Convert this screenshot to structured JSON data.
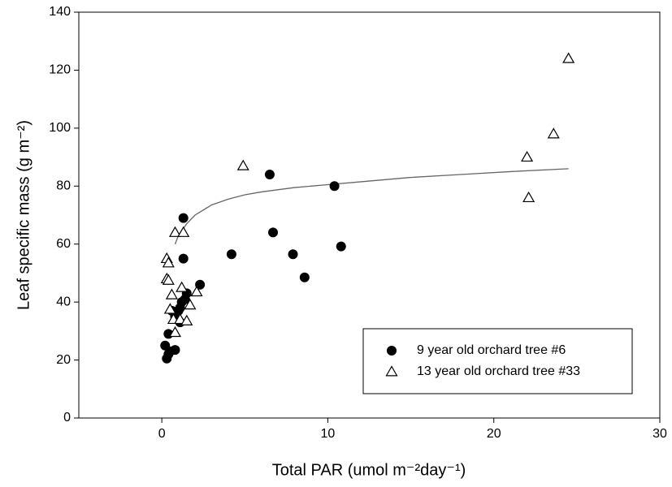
{
  "chart_data": {
    "type": "scatter",
    "x_label": "Total PAR (umol m⁻²day⁻¹)",
    "y_label": "Leaf specific mass (g m⁻²)",
    "xlim": [
      -5,
      30
    ],
    "xticks": [
      0,
      10,
      20,
      30
    ],
    "ylim": [
      0,
      140
    ],
    "yticks": [
      0,
      20,
      40,
      60,
      80,
      100,
      120,
      140
    ],
    "grid": false,
    "legend": "lower right",
    "series": [
      {
        "name": "9 year old orchard tree #6",
        "color": "#000000",
        "marker": "circle",
        "x": [
          0.2,
          0.3,
          0.4,
          0.4,
          0.5,
          0.8,
          0.6,
          0.8,
          1.0,
          1.1,
          1.1,
          1.2,
          1.4,
          1.5,
          1.3,
          1.3,
          2.3,
          4.2,
          6.5,
          6.7,
          7.9,
          8.6,
          10.4,
          10.8
        ],
        "values": [
          25,
          20.5,
          22,
          29,
          23,
          23.5,
          37,
          35,
          37,
          33,
          38,
          40,
          41,
          43,
          55,
          69,
          46,
          56.5,
          84,
          64,
          56.5,
          48.5,
          80,
          59.2
        ]
      },
      {
        "name": "13 year old orchard tree #33",
        "color": "#000000",
        "marker": "triangle",
        "x": [
          0.3,
          0.3,
          0.4,
          0.4,
          0.6,
          0.5,
          0.7,
          0.8,
          0.8,
          1.3,
          1.2,
          1.1,
          1.5,
          1.7,
          2.1,
          4.9,
          22.0,
          22.1,
          23.6,
          24.5
        ],
        "values": [
          48,
          55,
          53.5,
          47.5,
          42.5,
          37.5,
          34,
          29.5,
          64,
          64,
          45,
          34,
          33.5,
          39,
          43.5,
          87,
          90,
          76,
          98,
          124
        ]
      }
    ],
    "curve": {
      "color": "#666666",
      "x": [
        0.8,
        1,
        1.5,
        2,
        3,
        4,
        5,
        6,
        8,
        10,
        12,
        15,
        18,
        21,
        24.5
      ],
      "y": [
        60,
        63,
        67,
        70,
        73.5,
        75.5,
        77,
        78,
        79.5,
        80.5,
        81.5,
        83,
        84,
        85,
        86
      ]
    }
  }
}
